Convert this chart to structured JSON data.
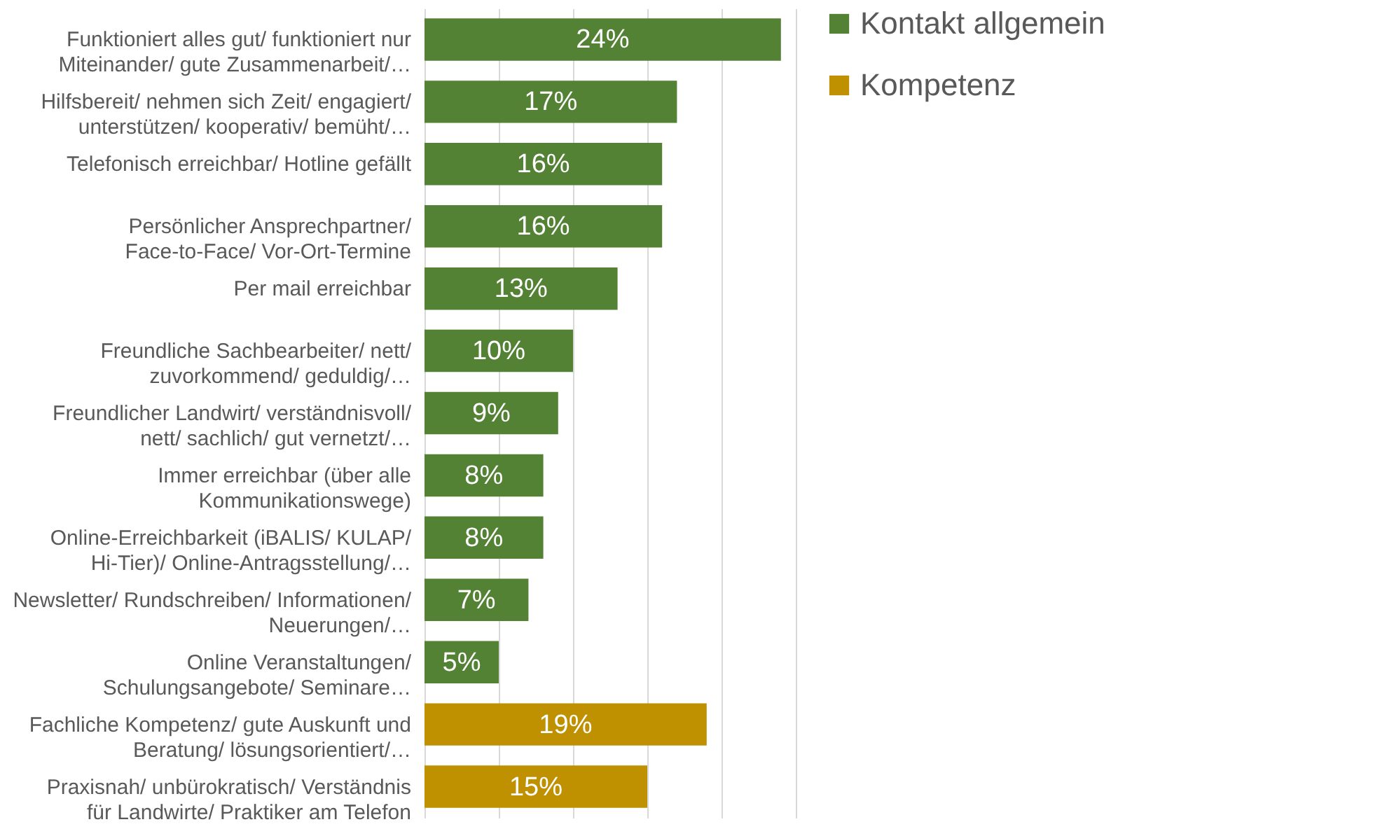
{
  "chart_data": {
    "type": "bar",
    "orientation": "horizontal",
    "categories": [
      "Funktioniert alles gut/ funktioniert nur Miteinander/ gute Zusammenarbeit/…",
      "Hilfsbereit/ nehmen sich Zeit/ engagiert/ unterstützen/ kooperativ/ bemüht/…",
      "Telefonisch erreichbar/ Hotline gefällt",
      "Persönlicher Ansprechpartner/ Face-to-Face/ Vor-Ort-Termine",
      "Per mail erreichbar",
      "Freundliche Sachbearbeiter/ nett/ zuvorkommend/ geduldig/…",
      "Freundlicher Landwirt/ verständnisvoll/ nett/ sachlich/ gut vernetzt/…",
      "Immer erreichbar (über alle Kommunikationswege)",
      "Online-Erreichbarkeit (iBALIS/ KULAP/ Hi-Tier)/ Online-Antragsstellung/…",
      "Newsletter/ Rundschreiben/ Informationen/ Neuerungen/…",
      "Online Veranstaltungen/ Schulungsangebote/ Seminare…",
      "Fachliche Kompetenz/ gute Auskunft und Beratung/ lösungsorientiert/…",
      "Praxisnah/ unbürokratisch/ Verständnis für Landwirte/ Praktiker am Telefon"
    ],
    "series": [
      {
        "name": "Kontakt allgemein",
        "color": "#548235",
        "values": [
          24,
          17,
          16,
          16,
          13,
          10,
          9,
          8,
          8,
          7,
          5,
          null,
          null
        ],
        "value_labels": [
          "24%",
          "17%",
          "16%",
          "16%",
          "13%",
          "10%",
          "9%",
          "8%",
          "8%",
          "7%",
          "5%",
          null,
          null
        ]
      },
      {
        "name": "Kompetenz",
        "color": "#bf9000",
        "values": [
          null,
          null,
          null,
          null,
          null,
          null,
          null,
          null,
          null,
          null,
          null,
          19,
          15
        ],
        "value_labels": [
          null,
          null,
          null,
          null,
          null,
          null,
          null,
          null,
          null,
          null,
          null,
          "19%",
          "15%"
        ]
      }
    ],
    "xlim": [
      0,
      25
    ],
    "xticks": [
      {
        "value": 0,
        "label": null
      },
      {
        "value": 5,
        "label": null
      },
      {
        "value": 10,
        "label": null
      },
      {
        "value": 15,
        "label": null
      },
      {
        "value": 20,
        "label": null
      },
      {
        "value": 25,
        "label": null
      }
    ],
    "tick_labels": "y",
    "grid": "x",
    "legend": "right"
  }
}
